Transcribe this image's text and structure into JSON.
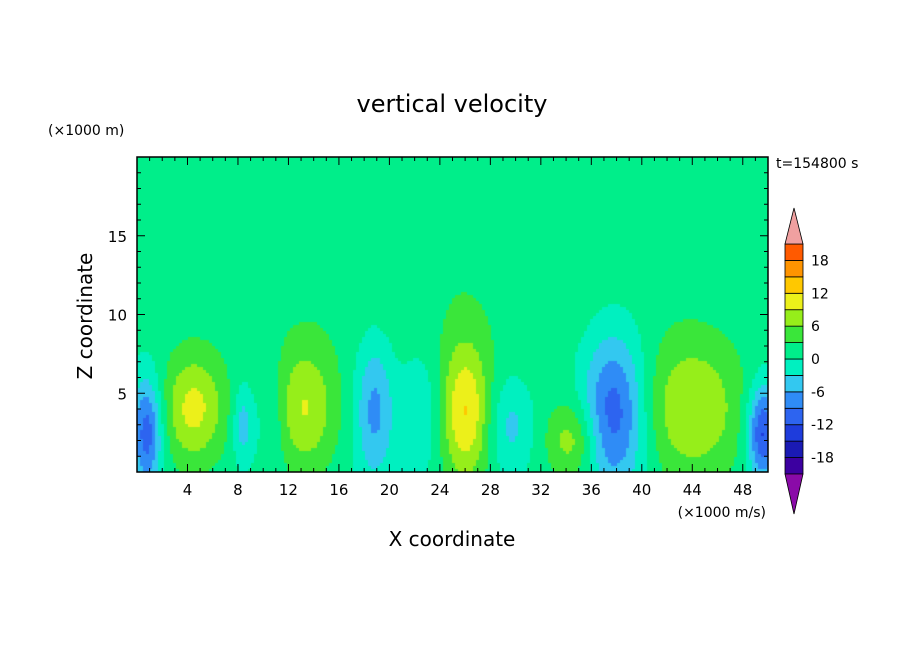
{
  "chart_data": {
    "type": "heatmap",
    "title": "vertical velocity",
    "xlabel": "X coordinate",
    "ylabel": "Z coordinate",
    "x_unit": "(×1000 m/s)",
    "y_unit": "(×1000 m)",
    "time_label": "t=154800 s",
    "xlim": [
      0,
      50
    ],
    "ylim": [
      0,
      20
    ],
    "x_ticks": [
      4,
      8,
      12,
      16,
      20,
      24,
      28,
      32,
      36,
      40,
      44,
      48
    ],
    "y_ticks": [
      5,
      10,
      15
    ],
    "colorbar": {
      "levels": [
        -21,
        -18,
        -15,
        -12,
        -9,
        -6,
        -3,
        0,
        3,
        6,
        9,
        12,
        15,
        18,
        21
      ],
      "tick_labels": [
        "18",
        "12",
        "6",
        "0",
        "-6",
        "-12",
        "-18"
      ],
      "colors": [
        "#8a0aa8",
        "#3c00a0",
        "#1a1ab4",
        "#1e3cdc",
        "#2d64f0",
        "#2f8cf6",
        "#33c8f0",
        "#00f0c0",
        "#00ee8a",
        "#3ae63a",
        "#96ee1a",
        "#ecf01a",
        "#ffc800",
        "#ff9400",
        "#ff5a00",
        "#f02414",
        "#f0a0a0"
      ]
    },
    "features": [
      {
        "x": 0.8,
        "z": 2.5,
        "w": 1.2,
        "d": 3.5,
        "value": -12
      },
      {
        "x": 4.5,
        "z": 4.0,
        "w": 2.5,
        "d": 3.5,
        "value": 9
      },
      {
        "x": 8.4,
        "z": 3.0,
        "w": 0.8,
        "d": 2.5,
        "value": -6
      },
      {
        "x": 10.6,
        "z": 3.5,
        "w": 1.2,
        "d": 3.5,
        "value": -3
      },
      {
        "x": 13.3,
        "z": 4.0,
        "w": 2.5,
        "d": 4.0,
        "value": 8
      },
      {
        "x": 18.8,
        "z": 4.0,
        "w": 1.5,
        "d": 4.5,
        "value": -8
      },
      {
        "x": 22.5,
        "z": 3.8,
        "w": 1.8,
        "d": 4.0,
        "value": -4
      },
      {
        "x": 26.0,
        "z": 3.8,
        "w": 2.0,
        "d": 4.5,
        "value": 11
      },
      {
        "x": 29.5,
        "z": 3.0,
        "w": 1.8,
        "d": 3.0,
        "value": -5
      },
      {
        "x": 34.5,
        "z": 2.0,
        "w": 2.0,
        "d": 2.5,
        "value": 7
      },
      {
        "x": 37.8,
        "z": 3.8,
        "w": 2.5,
        "d": 5.0,
        "value": -12
      },
      {
        "x": 44.0,
        "z": 4.0,
        "w": 4.0,
        "d": 4.5,
        "value": 8
      },
      {
        "x": 49.6,
        "z": 2.5,
        "w": 1.2,
        "d": 3.0,
        "value": -14
      },
      {
        "x": 24.0,
        "z": 12.5,
        "w": 20.0,
        "d": 7.0,
        "value": 1.5
      }
    ]
  }
}
